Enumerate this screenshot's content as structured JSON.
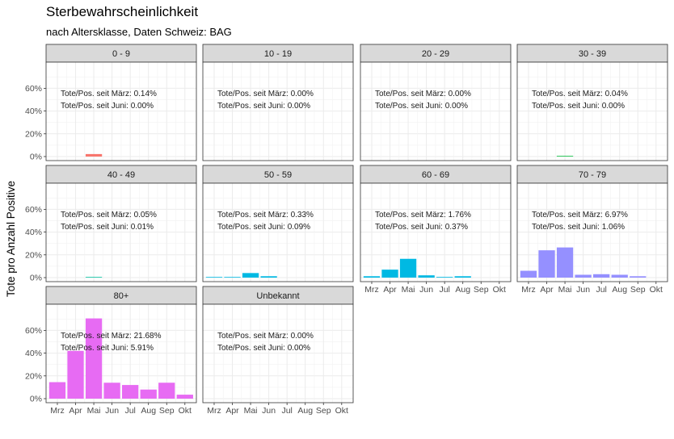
{
  "chart_data": {
    "type": "bar",
    "title": "Sterbewahrscheinlichkeit",
    "subtitle": "nach Altersklasse, Daten Schweiz: BAG",
    "xlabel": "",
    "ylabel": "Tote pro Anzahl Positive",
    "categories": [
      "Mrz",
      "Apr",
      "Mai",
      "Jun",
      "Jul",
      "Aug",
      "Sep",
      "Okt"
    ],
    "y_ticks": [
      "0%",
      "20%",
      "40%",
      "60%"
    ],
    "ylim": [
      0,
      0.78
    ],
    "grid": true,
    "facet_columns": 4,
    "panels": [
      {
        "label": "0 - 9",
        "color": "#F8766D",
        "values": [
          null,
          null,
          0.022,
          null,
          null,
          null,
          null,
          null
        ],
        "ann1": "Tote/Pos. seit März: 0.14%",
        "ann2": "Tote/Pos. seit Juni: 0.00%"
      },
      {
        "label": "10 - 19",
        "color": "#D39200",
        "values": [
          null,
          null,
          null,
          null,
          null,
          null,
          null,
          null
        ],
        "ann1": "Tote/Pos. seit März: 0.00%",
        "ann2": "Tote/Pos. seit Juni: 0.00%"
      },
      {
        "label": "20 - 29",
        "color": "#93AA00",
        "values": [
          null,
          null,
          null,
          null,
          null,
          null,
          null,
          null
        ],
        "ann1": "Tote/Pos. seit März: 0.00%",
        "ann2": "Tote/Pos. seit Juni: 0.00%"
      },
      {
        "label": "30 - 39",
        "color": "#00BA38",
        "values": [
          null,
          null,
          0.003,
          null,
          null,
          null,
          null,
          null
        ],
        "ann1": "Tote/Pos. seit März: 0.04%",
        "ann2": "Tote/Pos. seit Juni: 0.00%"
      },
      {
        "label": "40 - 49",
        "color": "#00C19F",
        "values": [
          null,
          null,
          0.004,
          null,
          null,
          null,
          null,
          null
        ],
        "ann1": "Tote/Pos. seit März: 0.05%",
        "ann2": "Tote/Pos. seit Juni: 0.01%"
      },
      {
        "label": "50 - 59",
        "color": "#00B9E3",
        "values": [
          0.004,
          0.004,
          0.04,
          0.012,
          null,
          null,
          null,
          null
        ],
        "ann1": "Tote/Pos. seit März: 0.33%",
        "ann2": "Tote/Pos. seit Juni: 0.09%"
      },
      {
        "label": "60 - 69",
        "color": "#00B9E3",
        "values": [
          0.012,
          0.07,
          0.165,
          0.02,
          0.006,
          0.012,
          null,
          null
        ],
        "ann1": "Tote/Pos. seit März: 1.76%",
        "ann2": "Tote/Pos. seit Juni: 0.37%"
      },
      {
        "label": "70 - 79",
        "color": "#9590FF",
        "values": [
          0.06,
          0.24,
          0.265,
          0.025,
          0.03,
          0.025,
          0.012,
          null
        ],
        "ann1": "Tote/Pos. seit März: 6.97%",
        "ann2": "Tote/Pos. seit Juni: 1.06%"
      },
      {
        "label": "80+",
        "color": "#E76BF3",
        "values": [
          0.145,
          0.42,
          0.705,
          0.14,
          0.12,
          0.08,
          0.14,
          0.035
        ],
        "ann1": "Tote/Pos. seit März: 21.68%",
        "ann2": "Tote/Pos. seit Juni: 5.91%"
      },
      {
        "label": "Unbekannt",
        "color": "#FF62BC",
        "values": [
          null,
          null,
          null,
          null,
          null,
          null,
          null,
          null
        ],
        "ann1": "Tote/Pos. seit März: 0.00%",
        "ann2": "Tote/Pos. seit Juni: 0.00%"
      }
    ],
    "x_axis_shown_on_panels": [
      "60 - 69",
      "70 - 79",
      "80+",
      "Unbekannt"
    ],
    "y_axis_shown_on_panels": [
      "0 - 9",
      "40 - 49",
      "80+"
    ]
  }
}
